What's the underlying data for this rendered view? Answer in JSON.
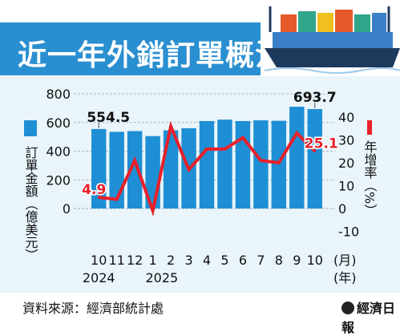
{
  "title": "近一年外銷訂單概況",
  "source": "資料來源：經濟部統計處",
  "publisher": "經濟日報",
  "colors": {
    "bar": "#1e8fd4",
    "line": "#e8202a",
    "title_bg": "#2a8fd0",
    "panel_bg": "#e9f4fb"
  },
  "chart_data": {
    "type": "bar",
    "categories": [
      "10",
      "11",
      "12",
      "1",
      "2",
      "3",
      "4",
      "5",
      "6",
      "7",
      "8",
      "9",
      "10"
    ],
    "years": [
      "2024",
      "2025"
    ],
    "x_unit": "(月)",
    "x_year_unit": "(年)",
    "series": [
      {
        "name": "訂單金額（億美元）",
        "axis": "left",
        "type": "bar",
        "values": [
          554.5,
          535,
          540,
          505,
          545,
          560,
          610,
          620,
          610,
          615,
          612,
          710,
          693.7
        ]
      },
      {
        "name": "年增率（%）",
        "axis": "right",
        "type": "line",
        "values": [
          4.9,
          4.0,
          21.0,
          -1.0,
          36.0,
          17.0,
          26.0,
          26.0,
          31.0,
          21.0,
          20.0,
          33.0,
          25.1
        ]
      }
    ],
    "ylabel_left": "訂單金額（億美元）",
    "ylabel_right": "年增率（%）",
    "ylim_left": [
      0,
      800
    ],
    "yticks_left": [
      0,
      200,
      400,
      600,
      800
    ],
    "ylim_right": [
      -10,
      40
    ],
    "yticks_right": [
      -10,
      0,
      10,
      20,
      30,
      40
    ],
    "annotations": [
      {
        "series": 0,
        "index": 0,
        "text": "554.5"
      },
      {
        "series": 0,
        "index": 12,
        "text": "693.7"
      },
      {
        "series": 1,
        "index": 0,
        "text": "4.9"
      },
      {
        "series": 1,
        "index": 12,
        "text": "25.1"
      }
    ],
    "grid": true
  }
}
